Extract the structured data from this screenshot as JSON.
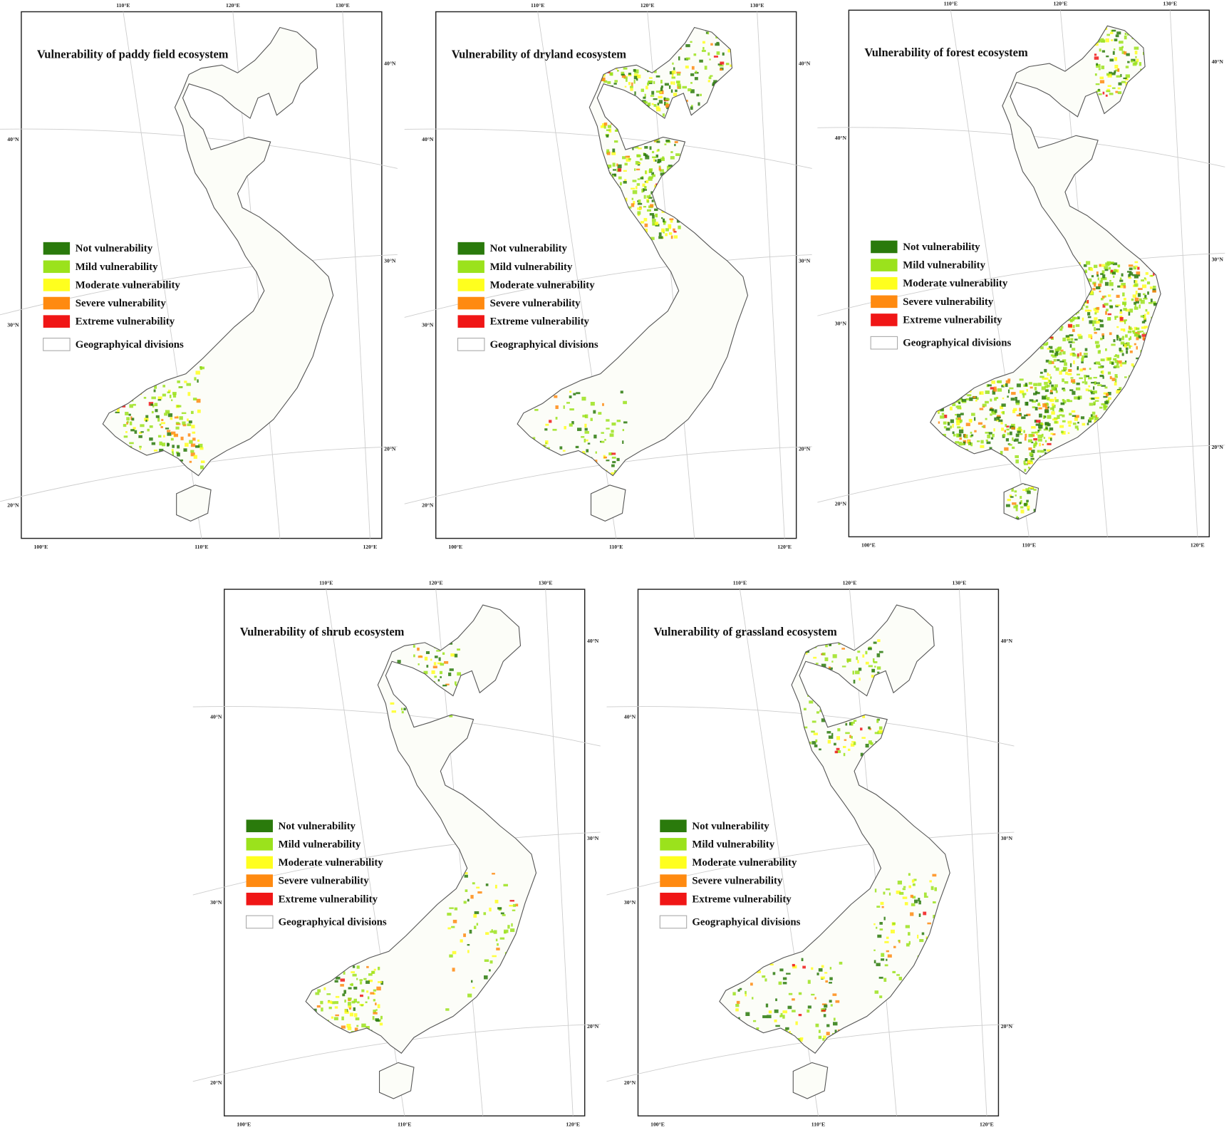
{
  "legend": [
    {
      "label": "Not vulnerability",
      "color": "#2a7a0c"
    },
    {
      "label": "Mild vulnerability",
      "color": "#9be21c"
    },
    {
      "label": "Moderate vulnerability",
      "color": "#ffff1e"
    },
    {
      "label": "Severe vulnerability",
      "color": "#ff8a10"
    },
    {
      "label": "Extreme vulnerability",
      "color": "#f01616"
    },
    {
      "label": "Geographyical divisions",
      "color": "#ffffff"
    }
  ],
  "graticule": {
    "top": [
      "110°E",
      "120°E",
      "130°E"
    ],
    "bottom": [
      "100°E",
      "110°E",
      "120°E"
    ],
    "left": [
      "40°N",
      "30°N",
      "20°N"
    ],
    "right": [
      "40°N",
      "30°N",
      "20°N"
    ]
  },
  "maps": [
    {
      "title": "Vulnerability of paddy field ecosystem"
    },
    {
      "title": "Vulnerability of dryland ecosystem"
    },
    {
      "title": "Vulnerability of forest ecosystem"
    },
    {
      "title": "Vulnerability of shrub ecosystem"
    },
    {
      "title": "Vulnerability of grassland ecosystem"
    }
  ]
}
